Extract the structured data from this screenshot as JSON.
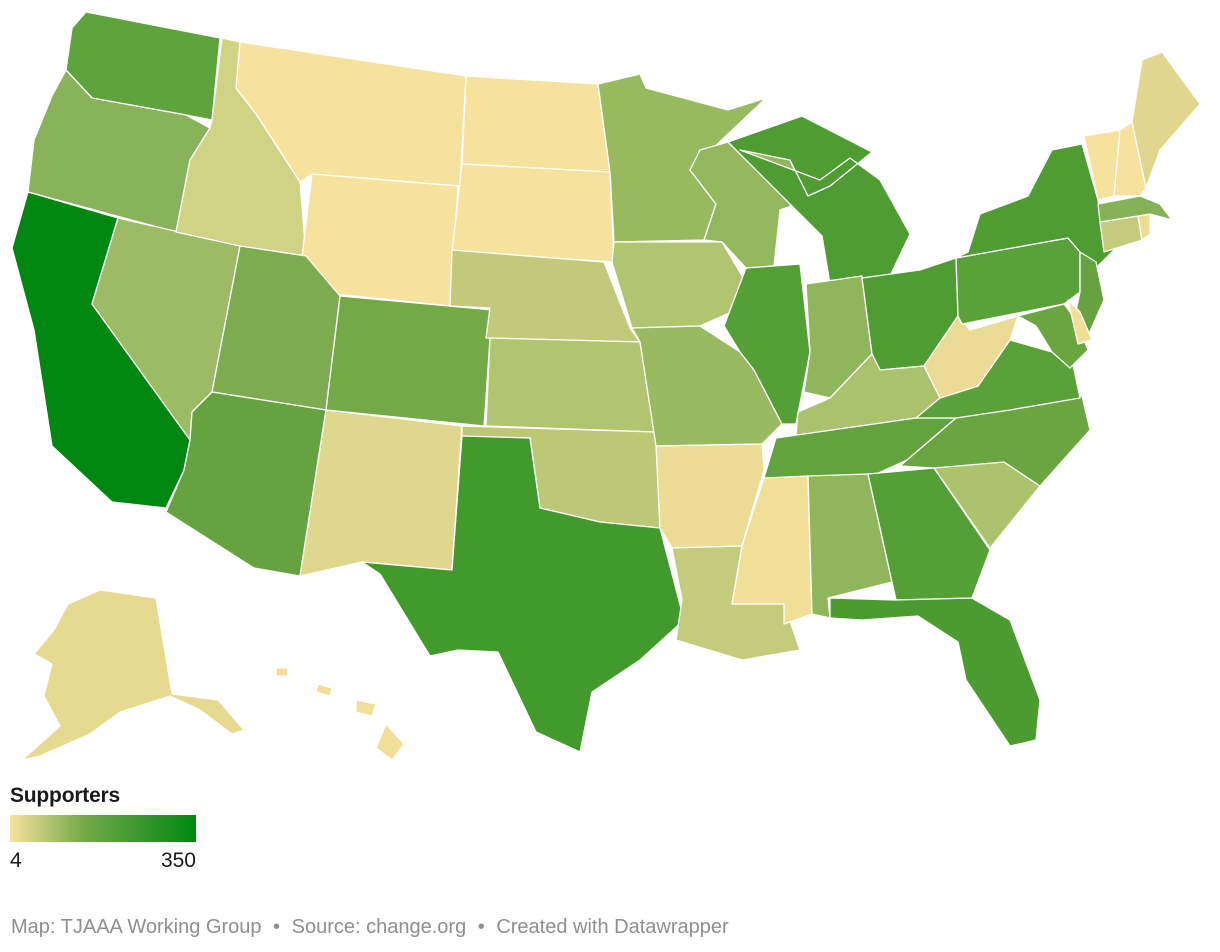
{
  "legend": {
    "title": "Supporters",
    "min_label": "4",
    "max_label": "350",
    "color_low": "#f7e29c",
    "color_mid": "#74a947",
    "color_high": "#008712"
  },
  "footer": {
    "map_credit": "Map: TJAAA Working Group",
    "source": "Source: change.org",
    "created_with": "Created with Datawrapper",
    "separator": "•"
  },
  "colors": {
    "background": "#ffffff",
    "border": "#ffffff",
    "footer_text": "#8f8f8f"
  },
  "states": [
    {
      "id": "WA",
      "color": "#5fa33c"
    },
    {
      "id": "OR",
      "color": "#89b35a"
    },
    {
      "id": "CA",
      "color": "#008712"
    },
    {
      "id": "NV",
      "color": "#9dbb65"
    },
    {
      "id": "ID",
      "color": "#d0d284"
    },
    {
      "id": "MT",
      "color": "#f6e29c"
    },
    {
      "id": "WY",
      "color": "#f6e29c"
    },
    {
      "id": "UT",
      "color": "#7cac4f"
    },
    {
      "id": "AZ",
      "color": "#66a340"
    },
    {
      "id": "CO",
      "color": "#74a947"
    },
    {
      "id": "NM",
      "color": "#e0d78e"
    },
    {
      "id": "ND",
      "color": "#f6e29c"
    },
    {
      "id": "SD",
      "color": "#f6e29c"
    },
    {
      "id": "NE",
      "color": "#c2c97a"
    },
    {
      "id": "KS",
      "color": "#b1c46f"
    },
    {
      "id": "OK",
      "color": "#bdc877"
    },
    {
      "id": "TX",
      "color": "#42992c"
    },
    {
      "id": "MN",
      "color": "#98ba5f"
    },
    {
      "id": "IA",
      "color": "#b1c46f"
    },
    {
      "id": "MO",
      "color": "#9aba62"
    },
    {
      "id": "AR",
      "color": "#eddc95"
    },
    {
      "id": "LA",
      "color": "#c5cb7c"
    },
    {
      "id": "WI",
      "color": "#92b75c"
    },
    {
      "id": "IL",
      "color": "#559f37"
    },
    {
      "id": "MI",
      "color": "#4f9c33"
    },
    {
      "id": "IN",
      "color": "#8fb65b"
    },
    {
      "id": "OH",
      "color": "#4f9c33"
    },
    {
      "id": "KY",
      "color": "#aac26b"
    },
    {
      "id": "TN",
      "color": "#62a33e"
    },
    {
      "id": "MS",
      "color": "#f1df97"
    },
    {
      "id": "AL",
      "color": "#8fb65b"
    },
    {
      "id": "GA",
      "color": "#559f37"
    },
    {
      "id": "FL",
      "color": "#4b9b31"
    },
    {
      "id": "SC",
      "color": "#acc26c"
    },
    {
      "id": "NC",
      "color": "#6aa542"
    },
    {
      "id": "VA",
      "color": "#5aa13a"
    },
    {
      "id": "WV",
      "color": "#ecdb94"
    },
    {
      "id": "PA",
      "color": "#5aa13a"
    },
    {
      "id": "NY",
      "color": "#4f9c33"
    },
    {
      "id": "NJ",
      "color": "#66a340"
    },
    {
      "id": "MD",
      "color": "#6aa542"
    },
    {
      "id": "DE",
      "color": "#f1df97"
    },
    {
      "id": "CT",
      "color": "#c5cb7c"
    },
    {
      "id": "RI",
      "color": "#eddc95"
    },
    {
      "id": "MA",
      "color": "#86b257"
    },
    {
      "id": "VT",
      "color": "#f6e29c"
    },
    {
      "id": "NH",
      "color": "#f6e29c"
    },
    {
      "id": "ME",
      "color": "#e0d78e"
    },
    {
      "id": "AK",
      "color": "#e6d990"
    },
    {
      "id": "HI",
      "color": "#f1df97"
    }
  ]
}
